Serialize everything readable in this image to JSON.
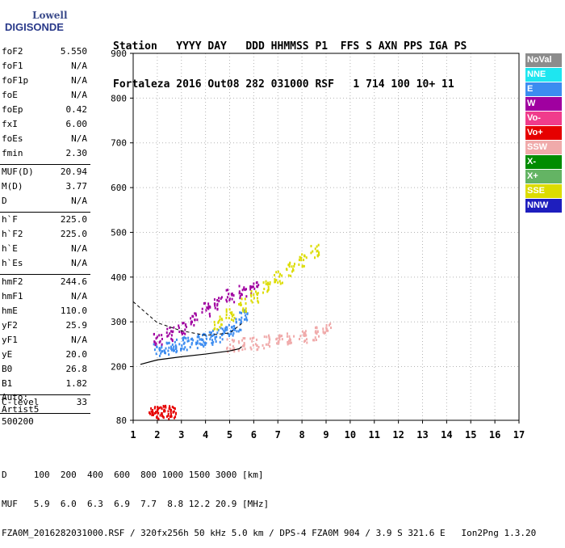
{
  "logo": {
    "line1": "Lowell",
    "line2": "DIGISONDE"
  },
  "header": {
    "line1": "Station   YYYY DAY   DDD HHMMSS P1  FFS S AXN PPS IGA PS",
    "line2": "Fortaleza 2016 Out08 282 031000 RSF   1 714 100 10+ 11"
  },
  "params": {
    "group1": [
      {
        "k": "foF2",
        "v": "5.550"
      },
      {
        "k": "foF1",
        "v": "N/A"
      },
      {
        "k": "foF1p",
        "v": "N/A"
      },
      {
        "k": "foE",
        "v": "N/A"
      },
      {
        "k": "foEp",
        "v": "0.42"
      },
      {
        "k": "fxI",
        "v": "6.00"
      },
      {
        "k": "foEs",
        "v": "N/A"
      },
      {
        "k": "fmin",
        "v": "2.30"
      }
    ],
    "group2": [
      {
        "k": "MUF(D)",
        "v": "20.94"
      },
      {
        "k": "M(D)",
        "v": "3.77"
      },
      {
        "k": "D",
        "v": "N/A"
      }
    ],
    "group3": [
      {
        "k": "h`F",
        "v": "225.0"
      },
      {
        "k": "h`F2",
        "v": "225.0"
      },
      {
        "k": "h`E",
        "v": "N/A"
      },
      {
        "k": "h`Es",
        "v": "N/A"
      }
    ],
    "group4": [
      {
        "k": "hmF2",
        "v": "244.6"
      },
      {
        "k": "hmF1",
        "v": "N/A"
      },
      {
        "k": "hmE",
        "v": "110.0"
      },
      {
        "k": "yF2",
        "v": "25.9"
      },
      {
        "k": "yF1",
        "v": "N/A"
      },
      {
        "k": "yE",
        "v": "20.0"
      },
      {
        "k": "B0",
        "v": "26.8"
      },
      {
        "k": "B1",
        "v": "1.82"
      }
    ],
    "group5": [
      {
        "k": "C-level",
        "v": "33"
      }
    ]
  },
  "auto": {
    "l1": "Auto:",
    "l2": "Artist5",
    "l3": "500200"
  },
  "legend": [
    {
      "label": "NoVal",
      "color": "#8c8c8c"
    },
    {
      "label": "NNE",
      "color": "#1ee6f0"
    },
    {
      "label": "E",
      "color": "#3c8cf0"
    },
    {
      "label": "W",
      "color": "#a000a0"
    },
    {
      "label": "Vo-",
      "color": "#f03c8c"
    },
    {
      "label": "Vo+",
      "color": "#e60000"
    },
    {
      "label": "SSW",
      "color": "#f0aaaa"
    },
    {
      "label": "X-",
      "color": "#008c00"
    },
    {
      "label": "X+",
      "color": "#64b464"
    },
    {
      "label": "SSE",
      "color": "#dcdc00"
    },
    {
      "label": "NNW",
      "color": "#1e1ebe"
    }
  ],
  "bottom": {
    "dist": "D     100  200  400  600  800 1000 1500 3000 [km]",
    "muf": "MUF   5.9  6.0  6.3  6.9  7.7  8.8 12.2 20.9 [MHz]",
    "footer": "FZA0M_2016282031000.RSF / 320fx256h 50 kHz 5.0 km / DPS-4 FZA0M 904 / 3.9 S 321.6 E   Ion2Png 1.3.20"
  },
  "chart_data": {
    "type": "scatter",
    "title": "",
    "xlabel": "",
    "ylabel": "",
    "xlim": [
      1,
      17
    ],
    "ylim": [
      80,
      900
    ],
    "xticks": [
      1,
      2,
      3,
      4,
      5,
      6,
      7,
      8,
      9,
      10,
      11,
      12,
      13,
      14,
      15,
      16,
      17
    ],
    "yticks": [
      80,
      200,
      300,
      400,
      500,
      600,
      700,
      800,
      900
    ],
    "grid": true,
    "clusters": [
      {
        "mode": "F2 O-trace (E)",
        "color": "#3c8cf0",
        "x": [
          2.0,
          2.3,
          2.6,
          2.9,
          3.2,
          3.5,
          3.8,
          4.1,
          4.4,
          4.7,
          5.0,
          5.3,
          5.55
        ],
        "y": [
          240,
          243,
          246,
          250,
          254,
          258,
          262,
          266,
          270,
          276,
          284,
          296,
          320
        ]
      },
      {
        "mode": "F2 X-trace (SSW)",
        "color": "#f0aaaa",
        "x": [
          5.0,
          5.5,
          6.0,
          6.5,
          7.0,
          7.5,
          8.0,
          8.5,
          9.0
        ],
        "y": [
          250,
          252,
          255,
          258,
          262,
          266,
          270,
          276,
          285
        ]
      },
      {
        "mode": "F2 O echoes (W)",
        "color": "#a000a0",
        "x": [
          2.0,
          2.5,
          3.0,
          3.5,
          4.0,
          4.5,
          5.0,
          5.5,
          6.0
        ],
        "y": [
          265,
          275,
          290,
          310,
          330,
          345,
          360,
          370,
          380
        ]
      },
      {
        "mode": "Spread F (SSE)",
        "color": "#dcdc00",
        "x": [
          4.5,
          5.0,
          5.5,
          6.0,
          6.5,
          7.0,
          7.5,
          8.0,
          8.5
        ],
        "y": [
          300,
          320,
          340,
          360,
          380,
          400,
          420,
          440,
          460
        ]
      },
      {
        "mode": "Low echoes (Vo+)",
        "color": "#e60000",
        "x": [
          1.8,
          2.0,
          2.2,
          2.4,
          2.6
        ],
        "y": [
          100,
          100,
          100,
          100,
          100
        ]
      }
    ],
    "profile": {
      "x": [
        1.3,
        2.0,
        3.0,
        4.0,
        5.0,
        5.4,
        5.5
      ],
      "y": [
        205,
        215,
        222,
        228,
        235,
        240,
        244.6
      ]
    },
    "height_vs_freq_dashed": {
      "x": [
        1.0,
        2.0,
        3.0,
        4.0,
        5.0,
        5.5
      ],
      "y": [
        345,
        298,
        280,
        270,
        275,
        296
      ]
    }
  }
}
